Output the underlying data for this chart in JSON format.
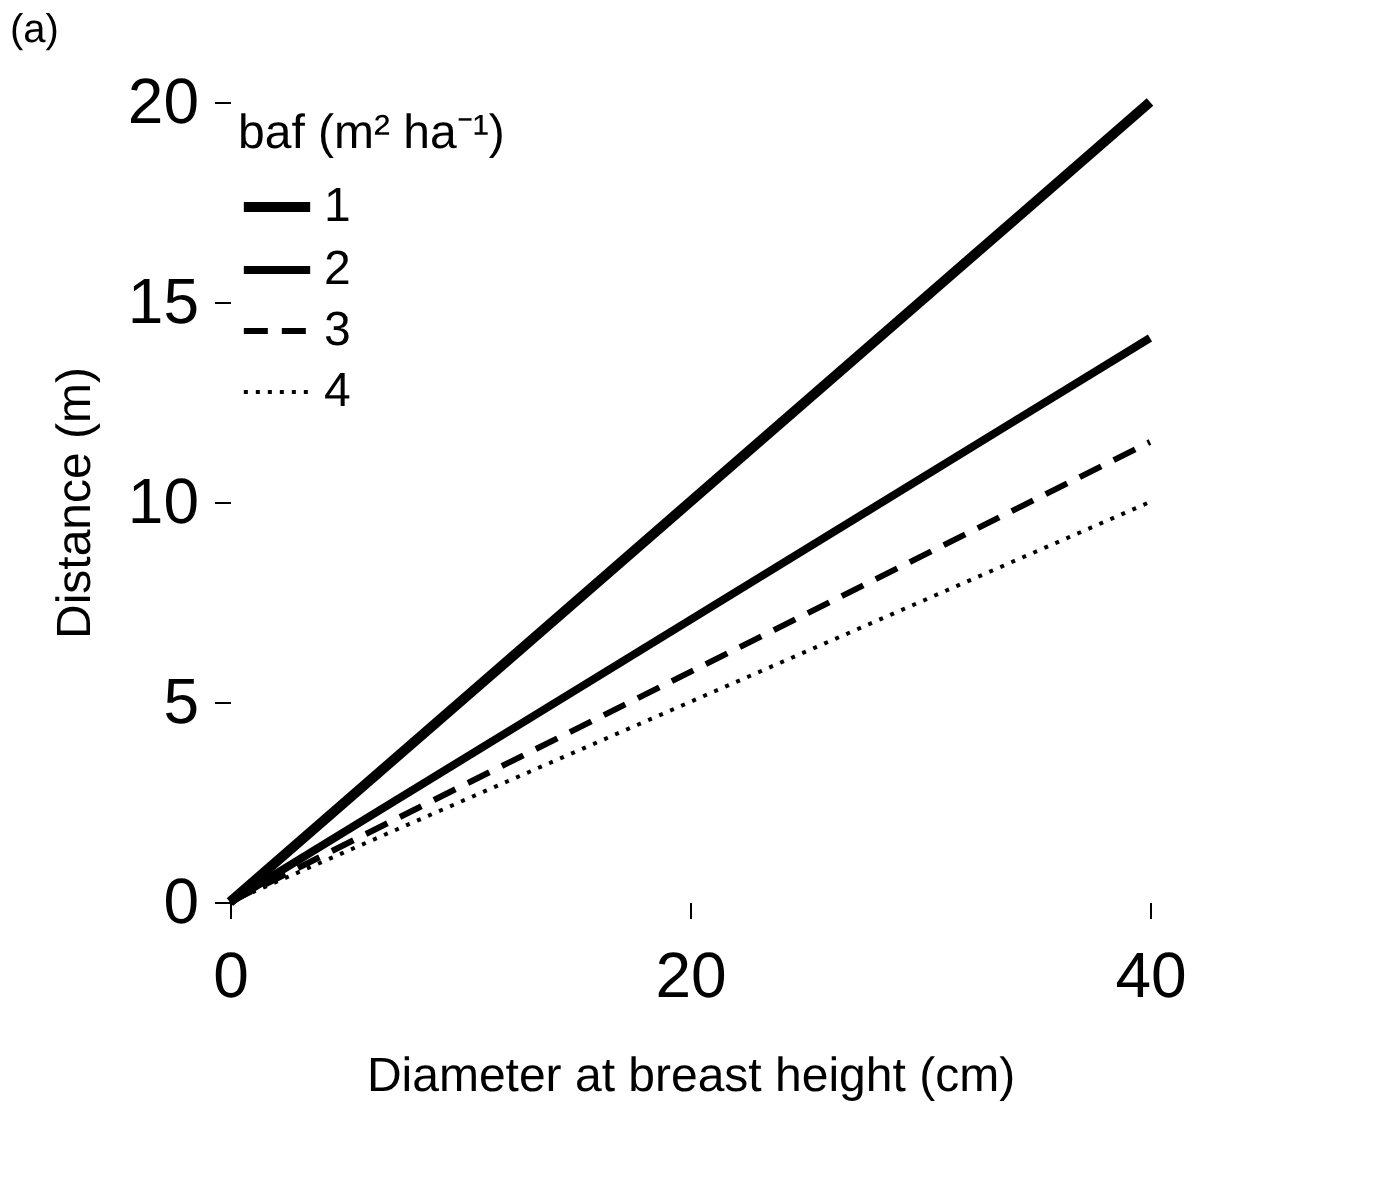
{
  "chart_data": {
    "type": "line",
    "title": "(a)",
    "xlabel": "Diameter at breast height (cm)",
    "ylabel": "Distance (m)",
    "legend_title": "baf (m² ha⁻¹)",
    "x": [
      0,
      40
    ],
    "series": [
      {
        "name": "1",
        "color": "#000000",
        "values": [
          0,
          20
        ],
        "line_style": "solid"
      },
      {
        "name": "2",
        "color": "#000000",
        "values": [
          0,
          14.1
        ],
        "line_style": "solid"
      },
      {
        "name": "3",
        "color": "#000000",
        "values": [
          0,
          11.5
        ],
        "line_style": "dashed"
      },
      {
        "name": "4",
        "color": "#000000",
        "values": [
          0,
          10
        ],
        "line_style": "dotted"
      }
    ],
    "xlim": [
      0,
      40
    ],
    "xticks": [
      0,
      20,
      40
    ],
    "ylim": [
      0,
      20
    ],
    "yticks": [
      0,
      5,
      10,
      15,
      20
    ],
    "grid": false,
    "legend": "top left",
    "marker": "none"
  }
}
